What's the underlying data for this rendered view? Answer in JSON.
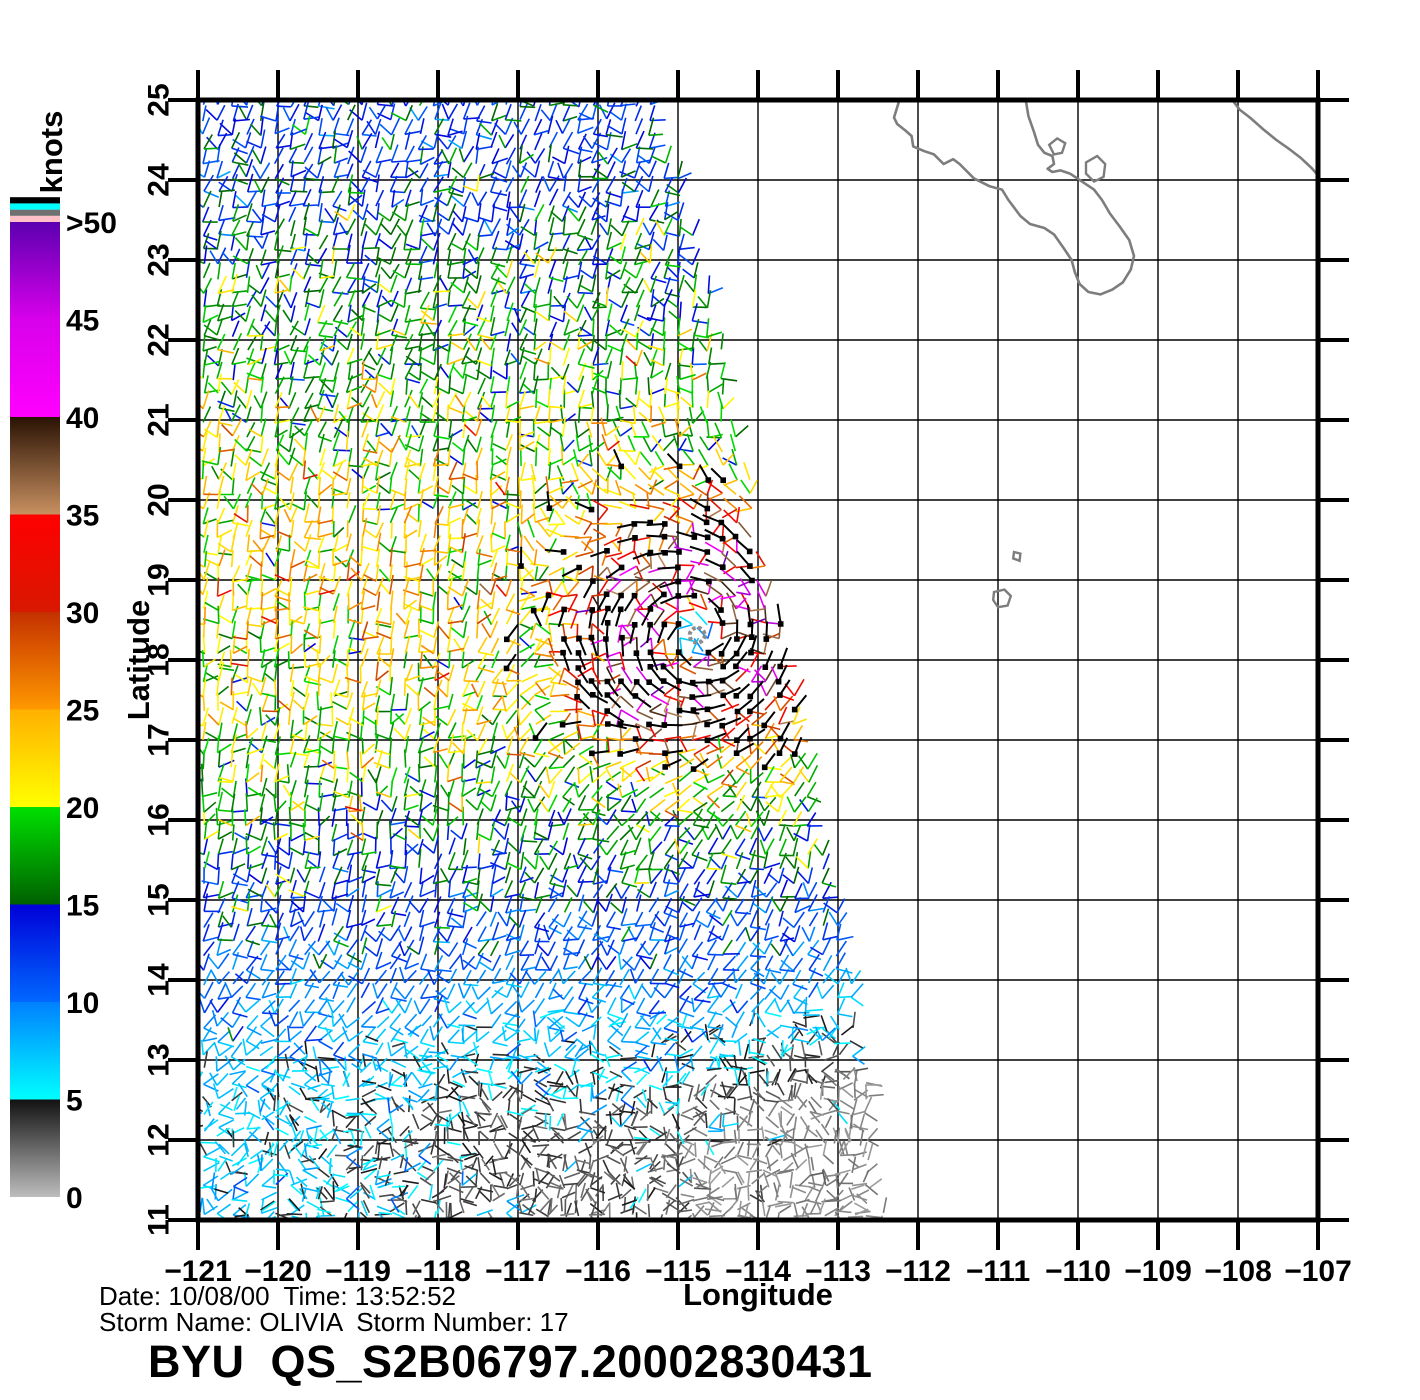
{
  "footer": {
    "date_time_line": "Date: 10/08/00  Time: 13:52:52",
    "storm_line": "Storm Name: OLIVIA  Storm Number: 17",
    "product_id": "BYU  QS_S2B06797.20002830431"
  },
  "chart_data": {
    "type": "vector-field-map",
    "title": "BYU QS_S2B06797.20002830431",
    "date": "10/08/00",
    "time": "13:52:52",
    "storm_name": "OLIVIA",
    "storm_number": "17",
    "xlabel": "Longitude",
    "ylabel": "Latitude",
    "xlim": [
      -121,
      -107
    ],
    "ylim": [
      11,
      25
    ],
    "grid": true,
    "xtick_values": [
      -121,
      -120,
      -119,
      -118,
      -117,
      -116,
      -115,
      -114,
      -113,
      -112,
      -111,
      -110,
      -109,
      -108,
      -107
    ],
    "xtick_labels": [
      "−121",
      "−120",
      "−119",
      "−118",
      "−117",
      "−116",
      "−115",
      "−114",
      "−113",
      "−112",
      "−111",
      "−110",
      "−109",
      "−108",
      "−107"
    ],
    "ytick_values": [
      11,
      12,
      13,
      14,
      15,
      16,
      17,
      18,
      19,
      20,
      21,
      22,
      23,
      24,
      25
    ],
    "ytick_labels": [
      "11",
      "12",
      "13",
      "14",
      "15",
      "16",
      "17",
      "18",
      "19",
      "20",
      "21",
      "22",
      "23",
      "24",
      "25"
    ],
    "colorbar": {
      "label": "knots",
      "tick_values": [
        0,
        5,
        10,
        15,
        20,
        25,
        30,
        35,
        40,
        45,
        50
      ],
      "tick_labels": [
        "0",
        "5",
        "10",
        "15",
        "20",
        "25",
        "30",
        "35",
        "40",
        "45",
        ">50"
      ],
      "segments": [
        {
          "v0": 0,
          "v1": 5,
          "c0": "#bdbdbd",
          "c1": "#121212"
        },
        {
          "v0": 5,
          "v1": 10,
          "c0": "#00ffff",
          "c1": "#0080ff"
        },
        {
          "v0": 10,
          "v1": 15,
          "c0": "#0068ff",
          "c1": "#0000d8"
        },
        {
          "v0": 15,
          "v1": 20,
          "c0": "#006000",
          "c1": "#00e000"
        },
        {
          "v0": 20,
          "v1": 25,
          "c0": "#ffff00",
          "c1": "#ffb000"
        },
        {
          "v0": 25,
          "v1": 30,
          "c0": "#ff9800",
          "c1": "#c43000"
        },
        {
          "v0": 30,
          "v1": 35,
          "c0": "#d81800",
          "c1": "#ff0000"
        },
        {
          "v0": 35,
          "v1": 40,
          "c0": "#c89060",
          "c1": "#2a1204"
        },
        {
          "v0": 40,
          "v1": 45,
          "c0": "#ff00ff",
          "c1": "#d800ea"
        },
        {
          "v0": 45,
          "v1": 50,
          "c0": "#d800ea",
          "c1": "#5c00b0"
        }
      ],
      "over_stripes_top_to_bottom": [
        "#000000",
        "#00ffff",
        "#707070",
        "#ffc0c8"
      ]
    },
    "storm": {
      "center_lon": -114.76,
      "center_lat": 18.31,
      "marker_color": "#8c8c8c"
    },
    "map": {
      "coast_color": "#7d7d7d",
      "coastlines": {
        "baja_california": [
          [
            -112.22,
            25.04
          ],
          [
            -112.3,
            24.78
          ],
          [
            -112.26,
            24.7
          ],
          [
            -112.16,
            24.62
          ],
          [
            -112.08,
            24.55
          ],
          [
            -112.06,
            24.42
          ],
          [
            -111.92,
            24.36
          ],
          [
            -111.8,
            24.32
          ],
          [
            -111.68,
            24.2
          ],
          [
            -111.56,
            24.26
          ],
          [
            -111.48,
            24.2
          ],
          [
            -111.3,
            24.02
          ],
          [
            -111.1,
            23.92
          ],
          [
            -110.95,
            23.88
          ],
          [
            -110.87,
            23.75
          ],
          [
            -110.72,
            23.55
          ],
          [
            -110.6,
            23.45
          ],
          [
            -110.42,
            23.4
          ],
          [
            -110.3,
            23.32
          ],
          [
            -110.18,
            23.15
          ],
          [
            -110.08,
            23.0
          ],
          [
            -110.04,
            22.85
          ],
          [
            -109.98,
            22.7
          ],
          [
            -109.87,
            22.6
          ],
          [
            -109.72,
            22.57
          ],
          [
            -109.57,
            22.63
          ],
          [
            -109.44,
            22.72
          ],
          [
            -109.34,
            22.88
          ],
          [
            -109.3,
            23.05
          ],
          [
            -109.36,
            23.25
          ],
          [
            -109.48,
            23.42
          ],
          [
            -109.6,
            23.58
          ],
          [
            -109.7,
            23.75
          ],
          [
            -109.8,
            23.88
          ],
          [
            -109.95,
            23.98
          ],
          [
            -110.1,
            24.08
          ],
          [
            -110.22,
            24.12
          ],
          [
            -110.32,
            24.1
          ],
          [
            -110.38,
            24.14
          ],
          [
            -110.3,
            24.2
          ],
          [
            -110.32,
            24.3
          ],
          [
            -110.42,
            24.34
          ],
          [
            -110.5,
            24.44
          ],
          [
            -110.55,
            24.6
          ],
          [
            -110.62,
            24.8
          ],
          [
            -110.66,
            25.04
          ]
        ],
        "mainland_mexico": [
          [
            -108.1,
            25.04
          ],
          [
            -107.98,
            24.88
          ],
          [
            -107.85,
            24.78
          ],
          [
            -107.68,
            24.63
          ],
          [
            -107.52,
            24.5
          ],
          [
            -107.35,
            24.38
          ],
          [
            -107.22,
            24.28
          ],
          [
            -107.08,
            24.15
          ],
          [
            -106.93,
            23.98
          ]
        ]
      },
      "islands": [
        {
          "name": "isla-san-jose",
          "pts": [
            [
              -110.36,
              24.44
            ],
            [
              -110.26,
              24.52
            ],
            [
              -110.16,
              24.46
            ],
            [
              -110.2,
              24.34
            ],
            [
              -110.3,
              24.32
            ],
            [
              -110.36,
              24.44
            ]
          ]
        },
        {
          "name": "isla-cerralvo",
          "pts": [
            [
              -109.9,
              24.22
            ],
            [
              -109.76,
              24.3
            ],
            [
              -109.66,
              24.2
            ],
            [
              -109.68,
              24.04
            ],
            [
              -109.8,
              23.98
            ],
            [
              -109.9,
              24.08
            ],
            [
              -109.9,
              24.22
            ]
          ]
        },
        {
          "name": "isla-socorro",
          "pts": [
            [
              -111.05,
              18.85
            ],
            [
              -110.92,
              18.88
            ],
            [
              -110.84,
              18.8
            ],
            [
              -110.88,
              18.68
            ],
            [
              -111.0,
              18.66
            ],
            [
              -111.06,
              18.75
            ],
            [
              -111.05,
              18.85
            ]
          ]
        },
        {
          "name": "isla-san-benedicto",
          "pts": [
            [
              -110.8,
              19.35
            ],
            [
              -110.72,
              19.33
            ],
            [
              -110.73,
              19.24
            ],
            [
              -110.81,
              19.27
            ],
            [
              -110.8,
              19.35
            ]
          ]
        }
      ]
    },
    "wind_field_model": {
      "note": "procedural recreation parameters of the scatterometer wind swath",
      "seed": 11,
      "grid_step_deg": 0.18,
      "lon_start": -120.93,
      "swath_edge": {
        "a": -112.5,
        "b": -0.15,
        "c": -0.004
      },
      "bg_speed_by_lat": [
        [
          11,
          3
        ],
        [
          12,
          3
        ],
        [
          12.5,
          4.5
        ],
        [
          13,
          6
        ],
        [
          13.5,
          8
        ],
        [
          14,
          10
        ],
        [
          15,
          13
        ],
        [
          16,
          17
        ],
        [
          17,
          20
        ],
        [
          18,
          21
        ],
        [
          19,
          22
        ],
        [
          20,
          21
        ],
        [
          21,
          19
        ],
        [
          22,
          17
        ],
        [
          23,
          15
        ],
        [
          24,
          13
        ],
        [
          25,
          13
        ]
      ],
      "bg_dir_by_lat": [
        [
          11,
          30
        ],
        [
          13,
          45
        ],
        [
          14,
          60
        ],
        [
          15,
          75
        ],
        [
          16,
          85
        ],
        [
          18,
          82
        ],
        [
          20,
          75
        ],
        [
          22,
          72
        ],
        [
          25,
          70
        ]
      ],
      "vortex": {
        "ring_boost": 16,
        "ring_radius": 0.85,
        "ring_width": 0.8,
        "eye_radius": 0.25,
        "blend_radius": 2.5
      },
      "lobes": [
        {
          "lon": -115.9,
          "lat": 17.5,
          "boost": 8,
          "sigma2": 0.22
        },
        {
          "lon": -114.7,
          "lat": 19.3,
          "boost": 5,
          "sigma2": 0.1
        }
      ],
      "rain_flags": {
        "rx": 1.5,
        "ry": 1.3,
        "rr_max": 1.75,
        "min_speed": 23
      },
      "calm_speed_max": 7,
      "calm_lat_max": 13.6
    }
  }
}
